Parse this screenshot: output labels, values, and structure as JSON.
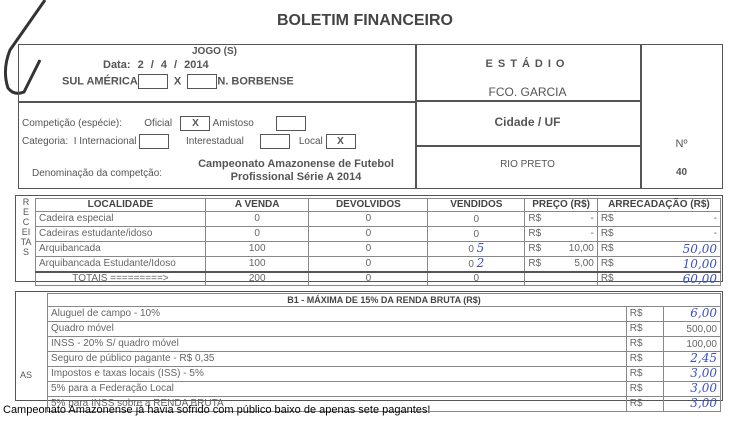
{
  "title": "BOLETIM FINANCEIRO",
  "jogo": {
    "label": "JOGO (S)",
    "data_label": "Data:",
    "day": "2",
    "month": "4",
    "year": "2014",
    "home": "SUL AMÉRICA",
    "vs": "X",
    "away": "N. BORBENSE"
  },
  "competicao": {
    "especie_label": "Competição (espécie):",
    "oficial": "Oficial",
    "oficial_mark": "X",
    "amistoso": "Amistoso",
    "amistoso_mark": "",
    "categoria_label": "Categoria:",
    "internacional": "Internacional",
    "interestadual": "Interestadual",
    "local": "Local",
    "local_mark": "X",
    "denominacao_label": "Denominação da competção:",
    "denominacao_line1": "Campeonato Amazonense de Futebol",
    "denominacao_line2": "Profissional Série A 2014"
  },
  "estadio": {
    "label": "ESTÁDIO",
    "value": "FCO. GARCIA",
    "cidade_label": "Cidade / UF",
    "cidade_value": "RIO PRETO",
    "numero_label": "Nº",
    "numero_value": "40"
  },
  "receitas": {
    "side_label": "RECEITAS",
    "headers": [
      "LOCALIDADE",
      "A VENDA",
      "DEVOLVIDOS",
      "VENDIDOS",
      "PREÇO (R$)",
      "ARRECADAÇÃO (R$)"
    ],
    "rows": [
      {
        "localidade": "Cadeira especial",
        "a_venda": "0",
        "devolvidos": "0",
        "vendidos": "0",
        "vendidos_hw": "",
        "preco_cur": "R$",
        "preco": "-",
        "arr_cur": "R$",
        "arr": "-",
        "arr_hw": ""
      },
      {
        "localidade": "Cadeiras estudante/idoso",
        "a_venda": "0",
        "devolvidos": "0",
        "vendidos": "0",
        "vendidos_hw": "",
        "preco_cur": "R$",
        "preco": "-",
        "arr_cur": "R$",
        "arr": "-",
        "arr_hw": ""
      },
      {
        "localidade": "Arquibancada",
        "a_venda": "100",
        "devolvidos": "0",
        "vendidos": "0",
        "vendidos_hw": "5",
        "preco_cur": "R$",
        "preco": "10,00",
        "arr_cur": "R$",
        "arr": "",
        "arr_hw": "50,00"
      },
      {
        "localidade": "Arquibancada Estudante/Idoso",
        "a_venda": "100",
        "devolvidos": "0",
        "vendidos": "0",
        "vendidos_hw": "2",
        "preco_cur": "R$",
        "preco": "5,00",
        "arr_cur": "R$",
        "arr": "",
        "arr_hw": "10,00"
      }
    ],
    "totals": {
      "label": "TOTAIS =========>",
      "a_venda": "200",
      "devolvidos": "0",
      "vendidos": "0",
      "arr_cur": "R$",
      "arr_hw": "60,00"
    }
  },
  "despesas": {
    "side_label": "AS",
    "header": "B1 - MÁXIMA DE 15% DA RENDA BRUTA (R$)",
    "rows": [
      {
        "label": "Aluguel de campo - 10%",
        "cur": "R$",
        "value": "",
        "hw": "6,00"
      },
      {
        "label": "Quadro móvel",
        "cur": "R$",
        "value": "500,00",
        "hw": ""
      },
      {
        "label": "INSS - 20% S/ quadro móvel",
        "cur": "R$",
        "value": "100,00",
        "hw": ""
      },
      {
        "label": "Seguro de público pagante - R$ 0,35",
        "cur": "R$",
        "value": "",
        "hw": "2,45"
      },
      {
        "label": "Impostos e taxas locais (ISS) - 5%",
        "cur": "R$",
        "value": "",
        "hw": "3,00"
      },
      {
        "label": "5% para a Federação Local",
        "cur": "R$",
        "value": "",
        "hw": "3,00"
      },
      {
        "label": "5% para INSS sobre a RENDA BRUTA",
        "cur": "R$",
        "value": "",
        "hw": "3,00"
      }
    ]
  },
  "caption": "Campeonato Amazonense já havia sofrido com público baixo de apenas sete pagantes!"
}
